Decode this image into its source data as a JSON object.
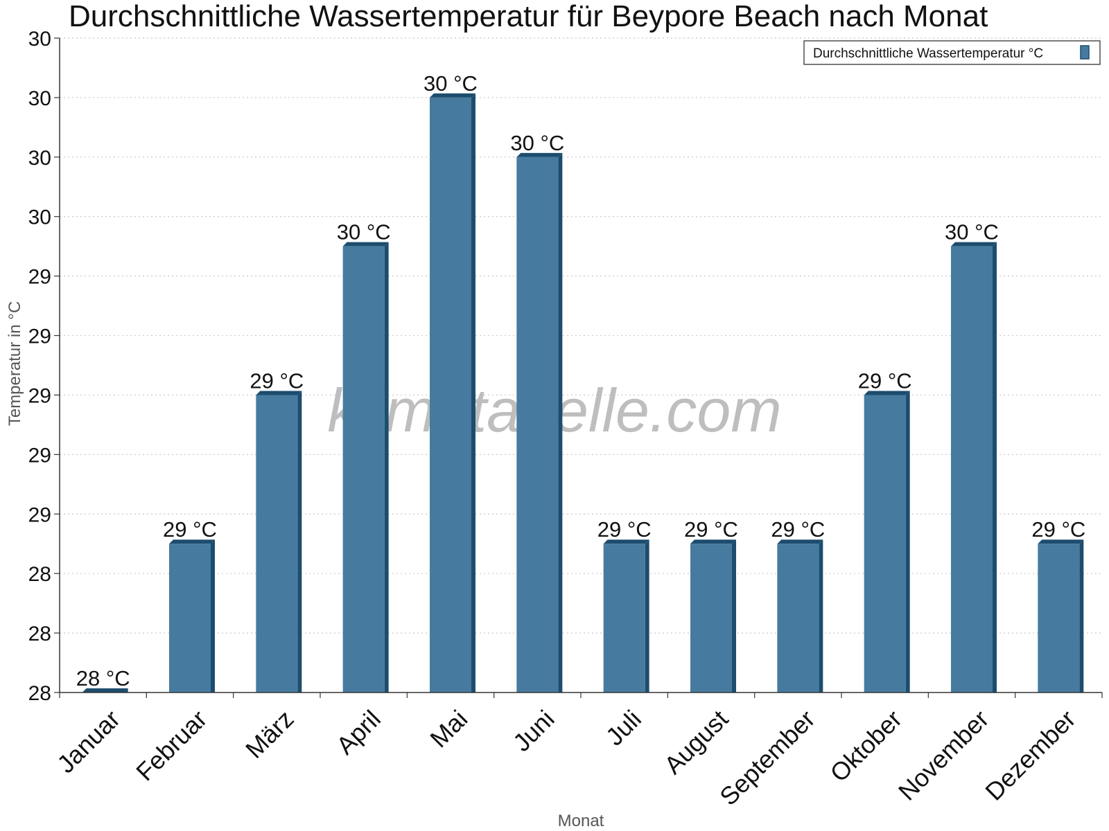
{
  "chart_data": {
    "type": "bar",
    "title": "Durchschnittliche Wassertemperatur für Beypore Beach nach Monat",
    "xlabel": "Monat",
    "ylabel": "Temperatur in °C",
    "categories": [
      "Januar",
      "Februar",
      "März",
      "April",
      "Mai",
      "Juni",
      "Juli",
      "August",
      "September",
      "Oktober",
      "November",
      "Dezember"
    ],
    "series": [
      {
        "name": "Durchschnittliche Wassertemperatur °C",
        "values": [
          28.0,
          28.5,
          29.0,
          29.5,
          30.0,
          29.8,
          28.5,
          28.5,
          28.5,
          29.0,
          29.5,
          28.5
        ],
        "labels": [
          "28 °C",
          "29 °C",
          "29 °C",
          "30 °C",
          "30 °C",
          "30 °C",
          "29 °C",
          "29 °C",
          "29 °C",
          "29 °C",
          "30 °C",
          "29 °C"
        ]
      }
    ],
    "ylim": [
      28.0,
      30.2
    ],
    "yticks": [
      28.0,
      28.2,
      28.4,
      28.6,
      28.8,
      29.0,
      29.2,
      29.4,
      29.6,
      29.8,
      30.0,
      30.2
    ],
    "ytick_labels": [
      "28",
      "28",
      "28",
      "29",
      "29",
      "29",
      "29",
      "29",
      "30",
      "30",
      "30",
      "30"
    ],
    "grid": "horizontal-dotted",
    "legend": "top-right",
    "watermark": "klimatabelle.com",
    "colors": {
      "bar": "#467b9f",
      "bar_dark": "#1d4d6e",
      "grid": "#c8c8c8",
      "axis": "#333333"
    }
  }
}
